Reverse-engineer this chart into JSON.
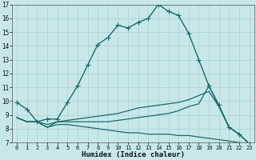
{
  "xlabel": "Humidex (Indice chaleur)",
  "xlim": [
    -0.5,
    23.5
  ],
  "ylim": [
    7,
    17
  ],
  "yticks": [
    7,
    8,
    9,
    10,
    11,
    12,
    13,
    14,
    15,
    16,
    17
  ],
  "xticks": [
    0,
    1,
    2,
    3,
    4,
    5,
    6,
    7,
    8,
    9,
    10,
    11,
    12,
    13,
    14,
    15,
    16,
    17,
    18,
    19,
    20,
    21,
    22,
    23
  ],
  "background_color": "#c8e8e8",
  "line_color": "#1a6b6b",
  "grid_color": "#a8d0d0",
  "lines": [
    {
      "x": [
        0,
        1,
        2,
        3,
        4,
        5,
        6,
        7,
        8,
        9,
        10,
        11,
        12,
        13,
        14,
        15,
        16,
        17,
        18,
        19,
        20,
        21,
        22,
        23
      ],
      "y": [
        9.9,
        9.4,
        8.5,
        8.7,
        8.7,
        9.9,
        11.1,
        12.6,
        14.1,
        14.6,
        15.5,
        15.3,
        15.7,
        16.0,
        17.0,
        16.5,
        16.2,
        14.9,
        13.0,
        11.1,
        9.7,
        8.1,
        7.6,
        6.9
      ],
      "marker": "+",
      "markersize": 4,
      "linewidth": 1.0,
      "has_marker": true
    },
    {
      "x": [
        0,
        1,
        2,
        3,
        4,
        5,
        6,
        7,
        8,
        9,
        10,
        11,
        12,
        13,
        14,
        15,
        16,
        17,
        18,
        19,
        20,
        21,
        22,
        23
      ],
      "y": [
        8.8,
        8.5,
        8.5,
        8.3,
        8.5,
        8.6,
        8.7,
        8.8,
        8.9,
        9.0,
        9.1,
        9.3,
        9.5,
        9.6,
        9.7,
        9.8,
        9.9,
        10.1,
        10.4,
        10.7,
        9.6,
        8.1,
        7.6,
        6.9
      ],
      "marker": null,
      "markersize": 0,
      "linewidth": 0.9,
      "has_marker": false
    },
    {
      "x": [
        0,
        1,
        2,
        3,
        4,
        5,
        6,
        7,
        8,
        9,
        10,
        11,
        12,
        13,
        14,
        15,
        16,
        17,
        18,
        19,
        20,
        21,
        22,
        23
      ],
      "y": [
        8.8,
        8.5,
        8.5,
        8.1,
        8.5,
        8.5,
        8.5,
        8.5,
        8.5,
        8.5,
        8.6,
        8.7,
        8.8,
        8.9,
        9.0,
        9.1,
        9.3,
        9.6,
        9.8,
        11.1,
        9.6,
        8.1,
        7.6,
        6.9
      ],
      "marker": null,
      "markersize": 0,
      "linewidth": 0.9,
      "has_marker": false
    },
    {
      "x": [
        0,
        1,
        2,
        3,
        4,
        5,
        6,
        7,
        8,
        9,
        10,
        11,
        12,
        13,
        14,
        15,
        16,
        17,
        18,
        19,
        20,
        21,
        22,
        23
      ],
      "y": [
        8.8,
        8.5,
        8.5,
        8.1,
        8.3,
        8.3,
        8.2,
        8.1,
        8.0,
        7.9,
        7.8,
        7.7,
        7.7,
        7.6,
        7.6,
        7.6,
        7.5,
        7.5,
        7.4,
        7.3,
        7.2,
        7.1,
        7.0,
        6.9
      ],
      "marker": null,
      "markersize": 0,
      "linewidth": 0.9,
      "has_marker": false
    }
  ]
}
